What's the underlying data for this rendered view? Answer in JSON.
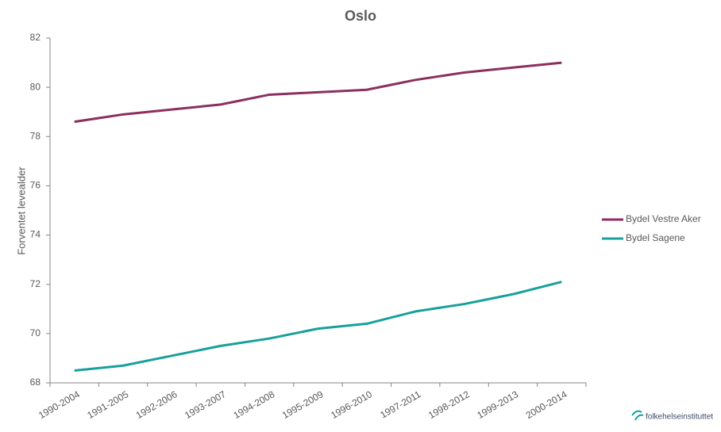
{
  "chart_data": {
    "type": "line",
    "title": "Oslo",
    "y_label": "Forventet levealder",
    "categories": [
      "1990-2004",
      "1991-2005",
      "1992-2006",
      "1993-2007",
      "1994-2008",
      "1995-2009",
      "1996-2010",
      "1997-2011",
      "1998-2012",
      "1999-2013",
      "2000-2014"
    ],
    "series": [
      {
        "name": "Bydel Vestre Aker",
        "color": "#8c2f5f",
        "values": [
          78.6,
          78.9,
          79.1,
          79.3,
          79.7,
          79.8,
          79.9,
          80.3,
          80.6,
          80.8,
          81.0
        ]
      },
      {
        "name": "Bydel Sagene",
        "color": "#17a09c",
        "values": [
          68.5,
          68.7,
          69.1,
          69.5,
          69.8,
          70.2,
          70.4,
          70.9,
          71.2,
          71.6,
          72.1
        ]
      }
    ],
    "ylim": [
      68,
      82
    ],
    "yticks": [
      68,
      70,
      72,
      74,
      76,
      78,
      80,
      82
    ],
    "grid": false,
    "legend": "right",
    "footer": "folkehelseinstituttet"
  }
}
